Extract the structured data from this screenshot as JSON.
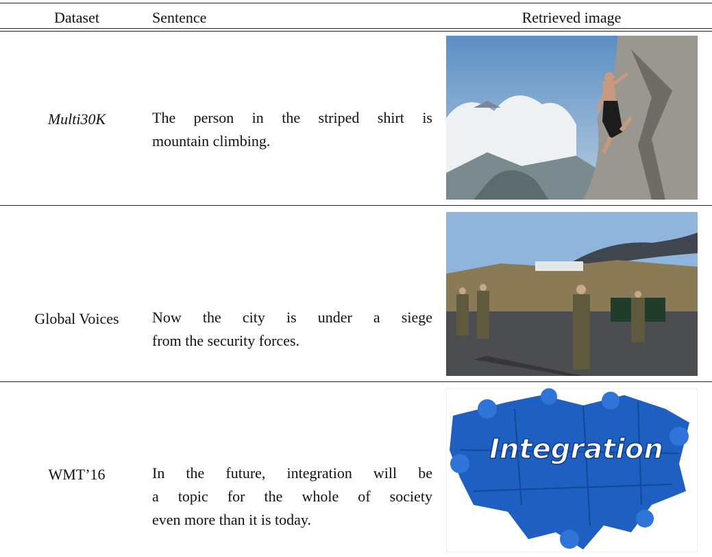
{
  "table": {
    "header": [
      "Dataset",
      "Sentence",
      "Retrieved image"
    ],
    "rows": [
      {
        "dataset": "Multi30K",
        "sentence": [
          "The person in the striped shirt is",
          "mountain climbing."
        ]
      },
      {
        "dataset": "Global Voices",
        "sentence": [
          "Now the city is under a siege",
          "from the security forces."
        ]
      },
      {
        "dataset": "WMT’16",
        "sentence": [
          "In the future, integration will be",
          "a topic for the whole of society",
          "even more than it is today."
        ],
        "image_text": "Integration"
      }
    ]
  }
}
